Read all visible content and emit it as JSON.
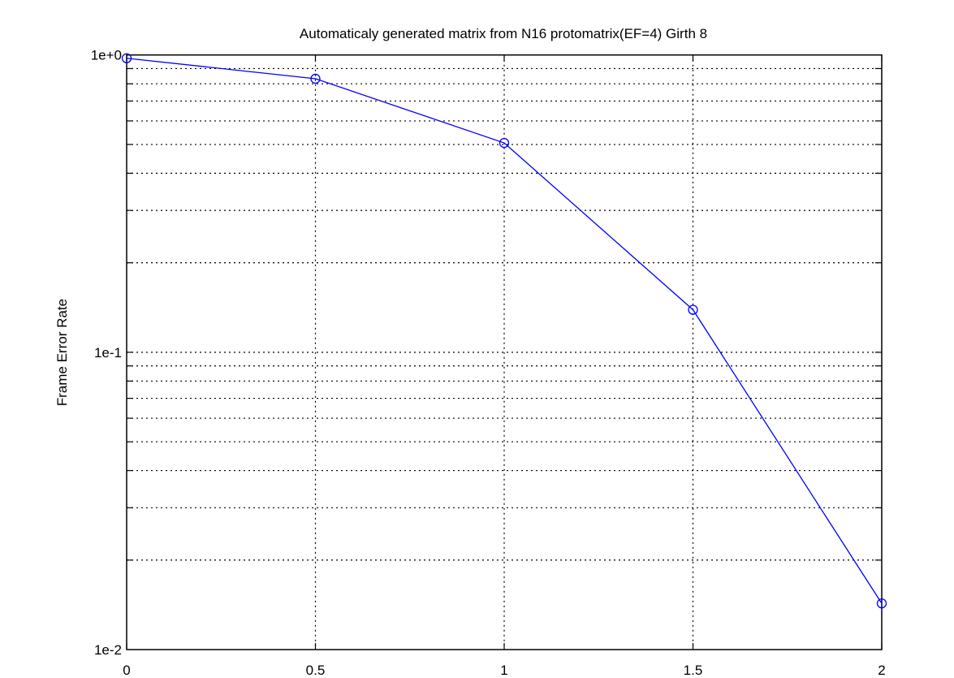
{
  "chart_data": {
    "type": "line",
    "title": "Automaticaly generated matrix from N16 protomatrix(EF=4) Girth 8",
    "xlabel": "",
    "ylabel": "Frame Error Rate",
    "xlim": [
      0,
      2
    ],
    "ylim": [
      0.01,
      1
    ],
    "yscale": "log",
    "grid": true,
    "x_ticks": [
      "0",
      "0.5",
      "1",
      "1.5",
      "2"
    ],
    "y_ticks": [
      "1e-2",
      "1e-1",
      "1e+0"
    ],
    "series": [
      {
        "x": [
          0,
          0.5,
          1,
          1.5,
          2
        ],
        "y": [
          0.975,
          0.832,
          0.506,
          0.139,
          0.0143
        ],
        "color": "#0000ff",
        "marker": "circle"
      }
    ]
  }
}
